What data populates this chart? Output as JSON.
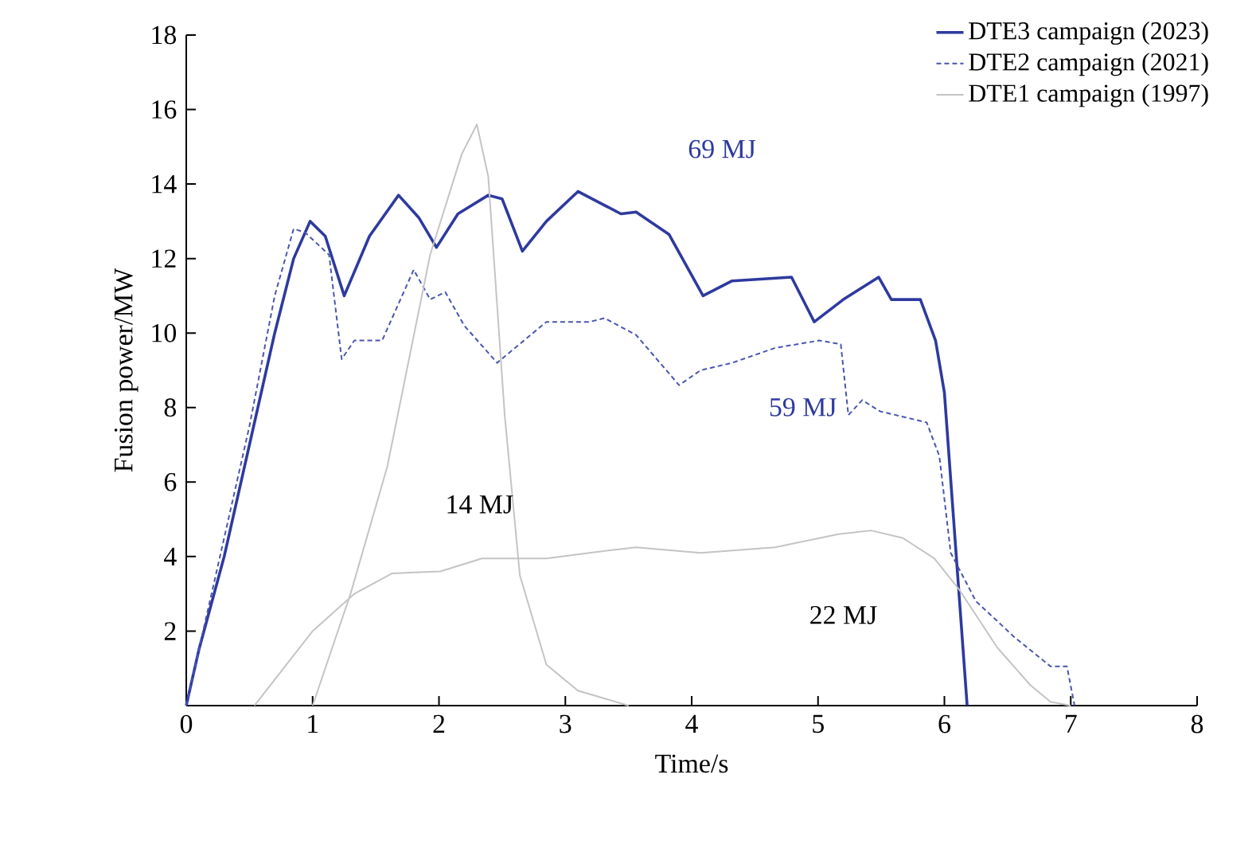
{
  "chart_data": {
    "type": "line",
    "xlabel": "Time/s",
    "ylabel": "Fusion power/MW",
    "xlim": [
      0,
      8
    ],
    "ylim": [
      0,
      18
    ],
    "xticks": [
      0,
      1,
      2,
      3,
      4,
      5,
      6,
      7,
      8
    ],
    "yticks": [
      {
        "value": 0,
        "label": null
      },
      2,
      4,
      6,
      8,
      10,
      12,
      14,
      16,
      18
    ],
    "grid": false,
    "legend": "top right",
    "marker": "none",
    "series": [
      {
        "name": "DTE3 campaign (2023)",
        "color": "#2e3a9e",
        "line_style": "solid",
        "x": [
          0,
          0.1,
          0.3,
          0.5,
          0.7,
          0.85,
          0.98,
          1.1,
          1.25,
          1.45,
          1.68,
          1.84,
          1.98,
          2.15,
          2.39,
          2.5,
          2.66,
          2.85,
          3.1,
          3.44,
          3.56,
          3.82,
          4.09,
          4.32,
          4.79,
          4.97,
          5.2,
          5.48,
          5.58,
          5.81,
          5.93,
          6.0,
          6.18
        ],
        "values": [
          0,
          1.5,
          4,
          7,
          10,
          12,
          13.0,
          12.6,
          11.0,
          12.6,
          13.7,
          13.1,
          12.3,
          13.2,
          13.7,
          13.6,
          12.2,
          13.0,
          13.8,
          13.2,
          13.25,
          12.65,
          11.0,
          11.4,
          11.5,
          10.3,
          10.9,
          11.5,
          10.9,
          10.9,
          9.8,
          8.4,
          0
        ]
      },
      {
        "name": "DTE2 campaign (2021)",
        "color": "#4a55b0",
        "line_style": "dashed",
        "x": [
          0,
          0.3,
          0.5,
          0.7,
          0.85,
          0.94,
          1.13,
          1.23,
          1.33,
          1.55,
          1.8,
          1.93,
          2.05,
          2.2,
          2.46,
          2.85,
          3.19,
          3.31,
          3.56,
          3.9,
          4.07,
          4.32,
          4.66,
          5.01,
          5.18,
          5.24,
          5.35,
          5.49,
          5.86,
          5.96,
          6.05,
          6.25,
          6.55,
          6.84,
          6.97,
          7.03
        ],
        "values": [
          0,
          4.5,
          7.5,
          11,
          12.8,
          12.7,
          12.1,
          9.3,
          9.8,
          9.8,
          11.7,
          10.9,
          11.1,
          10.2,
          9.2,
          10.3,
          10.3,
          10.4,
          9.95,
          8.6,
          9.0,
          9.2,
          9.6,
          9.8,
          9.7,
          7.8,
          8.2,
          7.9,
          7.6,
          6.7,
          4.1,
          2.8,
          1.85,
          1.05,
          1.05,
          0
        ]
      },
      {
        "name": "DTE1 campaign (1997)",
        "color": "#c4c4c4",
        "line_style": "solid",
        "x": [
          1.0,
          1.3,
          1.59,
          1.93,
          2.18,
          2.3,
          2.39,
          2.52,
          2.64,
          2.85,
          3.1,
          3.5
        ],
        "values": [
          0,
          3.0,
          6.4,
          12.1,
          14.8,
          15.6,
          14.2,
          7.8,
          3.5,
          1.1,
          0.4,
          0
        ]
      },
      {
        "color": "#c4c4c4",
        "line_style": "solid",
        "x": [
          0.54,
          1.0,
          1.33,
          1.63,
          2.01,
          2.34,
          2.85,
          3.19,
          3.56,
          4.07,
          4.66,
          5.16,
          5.42,
          5.67,
          5.92,
          6.12,
          6.42,
          6.68,
          6.84,
          7.0
        ],
        "values": [
          0,
          2.0,
          3.0,
          3.55,
          3.6,
          3.95,
          3.95,
          4.1,
          4.25,
          4.1,
          4.25,
          4.6,
          4.7,
          4.5,
          3.95,
          3.1,
          1.55,
          0.55,
          0.1,
          0
        ]
      }
    ],
    "annotations": [
      "69 MJ",
      "59 MJ",
      "14 MJ",
      "22 MJ"
    ]
  }
}
